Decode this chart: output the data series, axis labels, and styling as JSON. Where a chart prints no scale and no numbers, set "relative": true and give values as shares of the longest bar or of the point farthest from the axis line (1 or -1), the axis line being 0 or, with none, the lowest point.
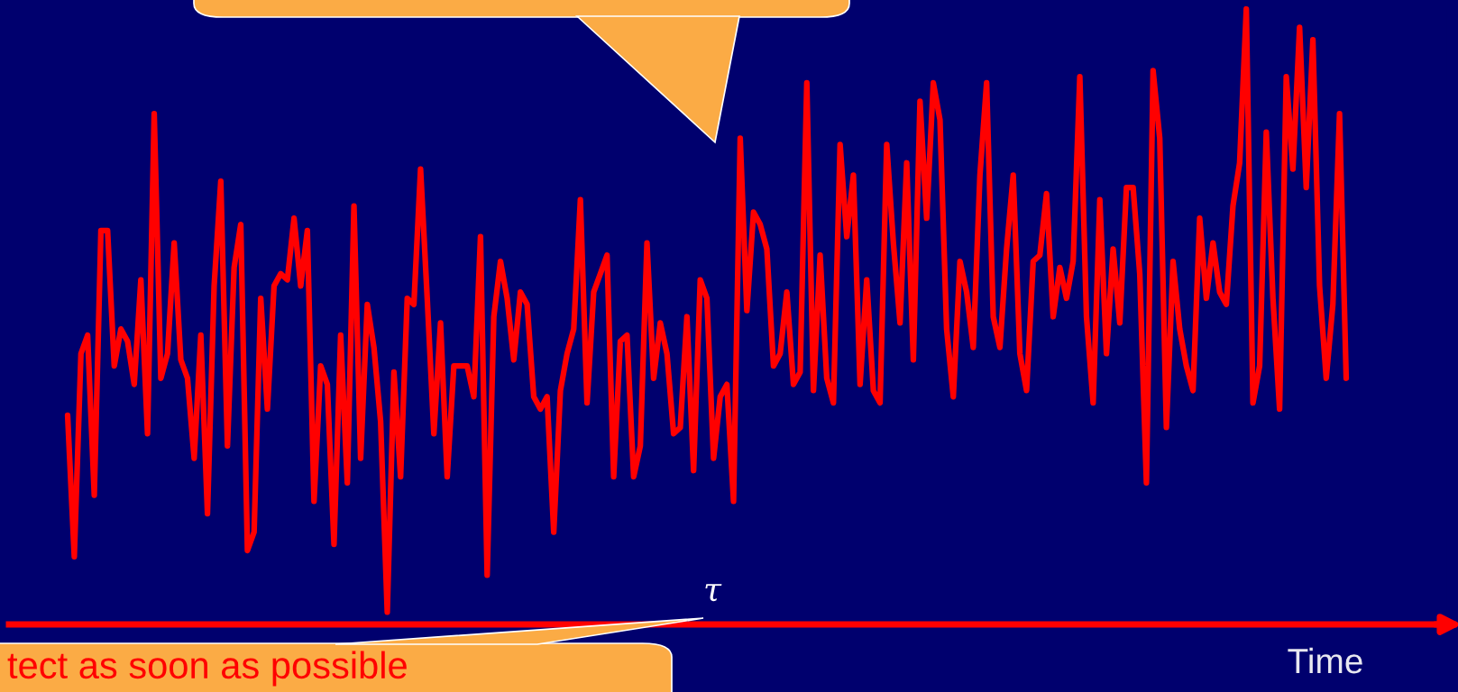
{
  "chart_data": {
    "type": "line",
    "relative": true,
    "xlabel": "Time",
    "color": "#ff0000",
    "annotations": [
      "τ",
      "tect as soon as possible"
    ],
    "categories": [
      null,
      null,
      null,
      null,
      null,
      null,
      null,
      null,
      null,
      null,
      null,
      null,
      null,
      null,
      null,
      null,
      null,
      null,
      null,
      null,
      null,
      null,
      null,
      null,
      null,
      null,
      null,
      null,
      null,
      null,
      null,
      null,
      null,
      null,
      null,
      null,
      null,
      null,
      null,
      null,
      null,
      null,
      null,
      null,
      null,
      null,
      null,
      null,
      null,
      null,
      null,
      null,
      null,
      null,
      null,
      null,
      null,
      null,
      null,
      null,
      null,
      null,
      null,
      null,
      null,
      null,
      null,
      null,
      null,
      null,
      null,
      null,
      null,
      null,
      null,
      null,
      null,
      null,
      null,
      null,
      null,
      null,
      null,
      null,
      null,
      null,
      null,
      null,
      null,
      null,
      null,
      null,
      null,
      null,
      null,
      null,
      null,
      null,
      null,
      null,
      null,
      null,
      null,
      null,
      null,
      null,
      null,
      null,
      null,
      null,
      null,
      null,
      null,
      null,
      null,
      null,
      null,
      null,
      null,
      null,
      null,
      null,
      null,
      null,
      null,
      null,
      null,
      null,
      null,
      null,
      null,
      null,
      null,
      null,
      null,
      null,
      null,
      null,
      null,
      null,
      null,
      null,
      null,
      null,
      null,
      null,
      null,
      null,
      null,
      null,
      null,
      null,
      null,
      null,
      null,
      null,
      null,
      null,
      null,
      null,
      null,
      null,
      null,
      null,
      null,
      null,
      null,
      null,
      null,
      null,
      null,
      null,
      null,
      null,
      null,
      null,
      null,
      null,
      null,
      null,
      null,
      null,
      null,
      null,
      null,
      null,
      null,
      null,
      null,
      null,
      null,
      null,
      null
    ],
    "values": [
      0.34,
      0.11,
      0.44,
      0.47,
      0.21,
      0.64,
      0.64,
      0.42,
      0.48,
      0.46,
      0.39,
      0.56,
      0.31,
      0.83,
      0.4,
      0.44,
      0.62,
      0.43,
      0.4,
      0.27,
      0.47,
      0.18,
      0.55,
      0.72,
      0.29,
      0.58,
      0.65,
      0.12,
      0.15,
      0.53,
      0.35,
      0.55,
      0.57,
      0.56,
      0.66,
      0.55,
      0.64,
      0.2,
      0.42,
      0.39,
      0.13,
      0.47,
      0.23,
      0.68,
      0.27,
      0.52,
      0.45,
      0.33,
      0.02,
      0.41,
      0.24,
      0.53,
      0.52,
      0.74,
      0.53,
      0.31,
      0.49,
      0.24,
      0.42,
      0.42,
      0.42,
      0.37,
      0.63,
      0.08,
      0.5,
      0.59,
      0.53,
      0.43,
      0.54,
      0.52,
      0.37,
      0.35,
      0.37,
      0.15,
      0.38,
      0.44,
      0.48,
      0.69,
      0.36,
      0.54,
      0.57,
      0.6,
      0.24,
      0.46,
      0.47,
      0.24,
      0.29,
      0.62,
      0.4,
      0.49,
      0.44,
      0.31,
      0.32,
      0.5,
      0.25,
      0.56,
      0.53,
      0.27,
      0.37,
      0.39,
      0.2,
      0.79,
      0.51,
      0.67,
      0.65,
      0.61,
      0.42,
      0.44,
      0.54,
      0.39,
      0.41,
      0.88,
      0.38,
      0.6,
      0.4,
      0.36,
      0.78,
      0.63,
      0.73,
      0.39,
      0.56,
      0.38,
      0.36,
      0.78,
      0.62,
      0.49,
      0.75,
      0.43,
      0.85,
      0.66,
      0.88,
      0.82,
      0.48,
      0.37,
      0.59,
      0.54,
      0.45,
      0.73,
      0.88,
      0.5,
      0.45,
      0.61,
      0.73,
      0.44,
      0.38,
      0.59,
      0.6,
      0.7,
      0.5,
      0.58,
      0.53,
      0.59,
      0.89,
      0.5,
      0.36,
      0.69,
      0.44,
      0.61,
      0.49,
      0.71,
      0.71,
      0.57,
      0.23,
      0.9,
      0.79,
      0.32,
      0.59,
      0.48,
      0.42,
      0.38,
      0.66,
      0.53,
      0.62,
      0.54,
      0.52,
      0.68,
      0.75,
      1,
      0.36,
      0.42,
      0.8,
      0.53,
      0.35,
      0.89,
      0.74,
      0.97,
      0.71,
      0.95,
      0.55,
      0.4,
      0.52,
      0.83,
      0.4
    ]
  }
}
